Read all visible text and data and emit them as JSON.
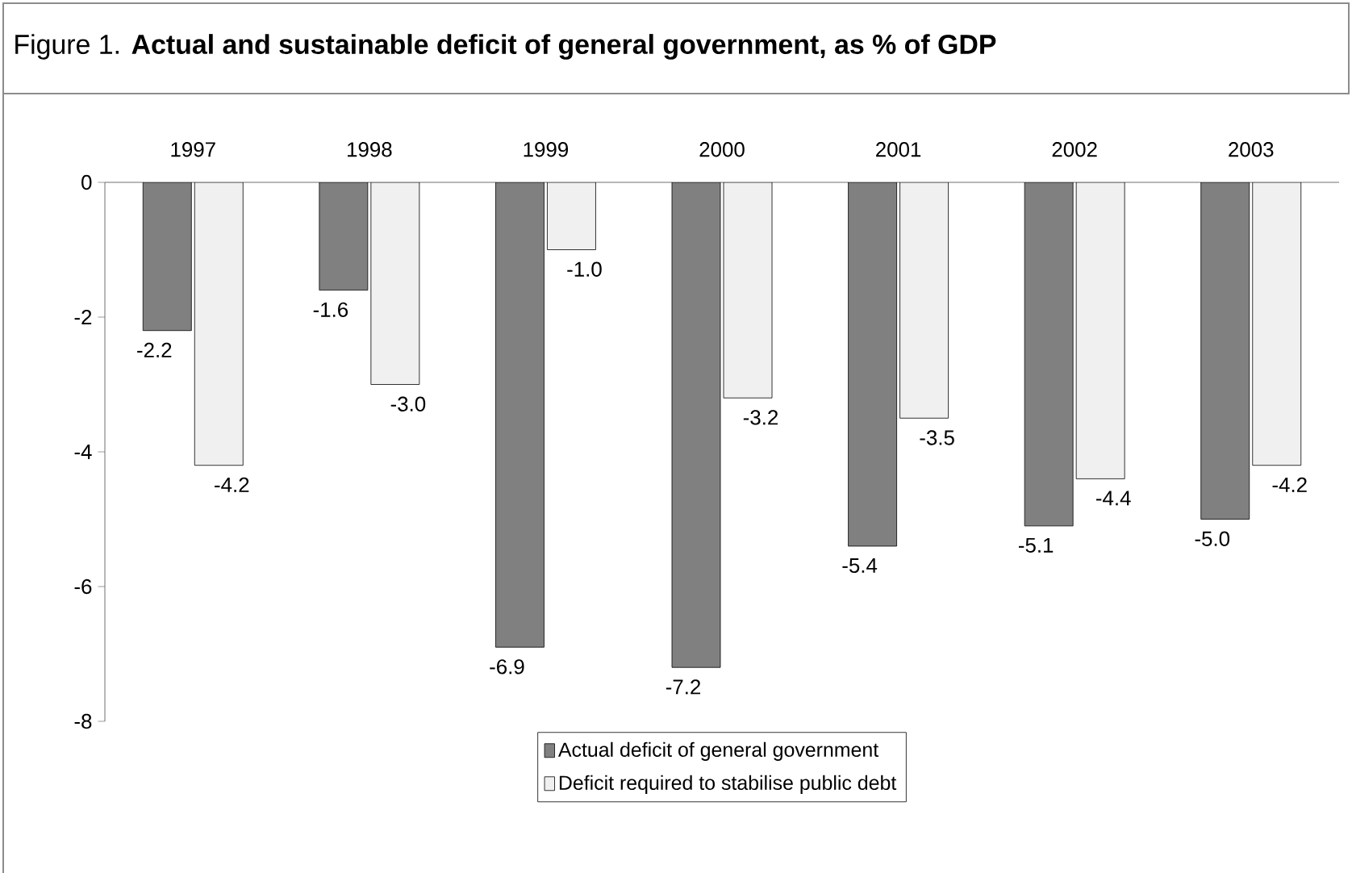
{
  "chart_data": {
    "type": "bar",
    "title": "Figure 1. **Actual and sustainable deficit of general government, as % of GDP**",
    "categories": [
      "1997",
      "1998",
      "1999",
      "2000",
      "2001",
      "2002",
      "2003"
    ],
    "series": [
      {
        "name": "Actual deficit of general government",
        "color": "#808080",
        "values": [
          -2.2,
          -1.6,
          -6.9,
          -7.2,
          -5.4,
          -5.1,
          -5.0
        ],
        "value_labels": [
          "-2.2",
          "-1.6",
          "-6.9",
          "-7.2",
          "-5.4",
          "-5.1",
          "-5.0"
        ]
      },
      {
        "name": "Deficit required to stabilise public debt",
        "color": "#f0f0f0",
        "values": [
          -4.2,
          -3.0,
          -1.0,
          -3.2,
          -3.5,
          -4.4,
          -4.2
        ],
        "value_labels": [
          "-4.2",
          "-3.0",
          "-1.0",
          "-3.2",
          "-3.5",
          "-4.4",
          "-4.2"
        ]
      }
    ],
    "ylim": [
      -8,
      0
    ],
    "yticks": [
      -8,
      -6,
      -4,
      -2,
      0
    ],
    "legend": "bottom"
  }
}
